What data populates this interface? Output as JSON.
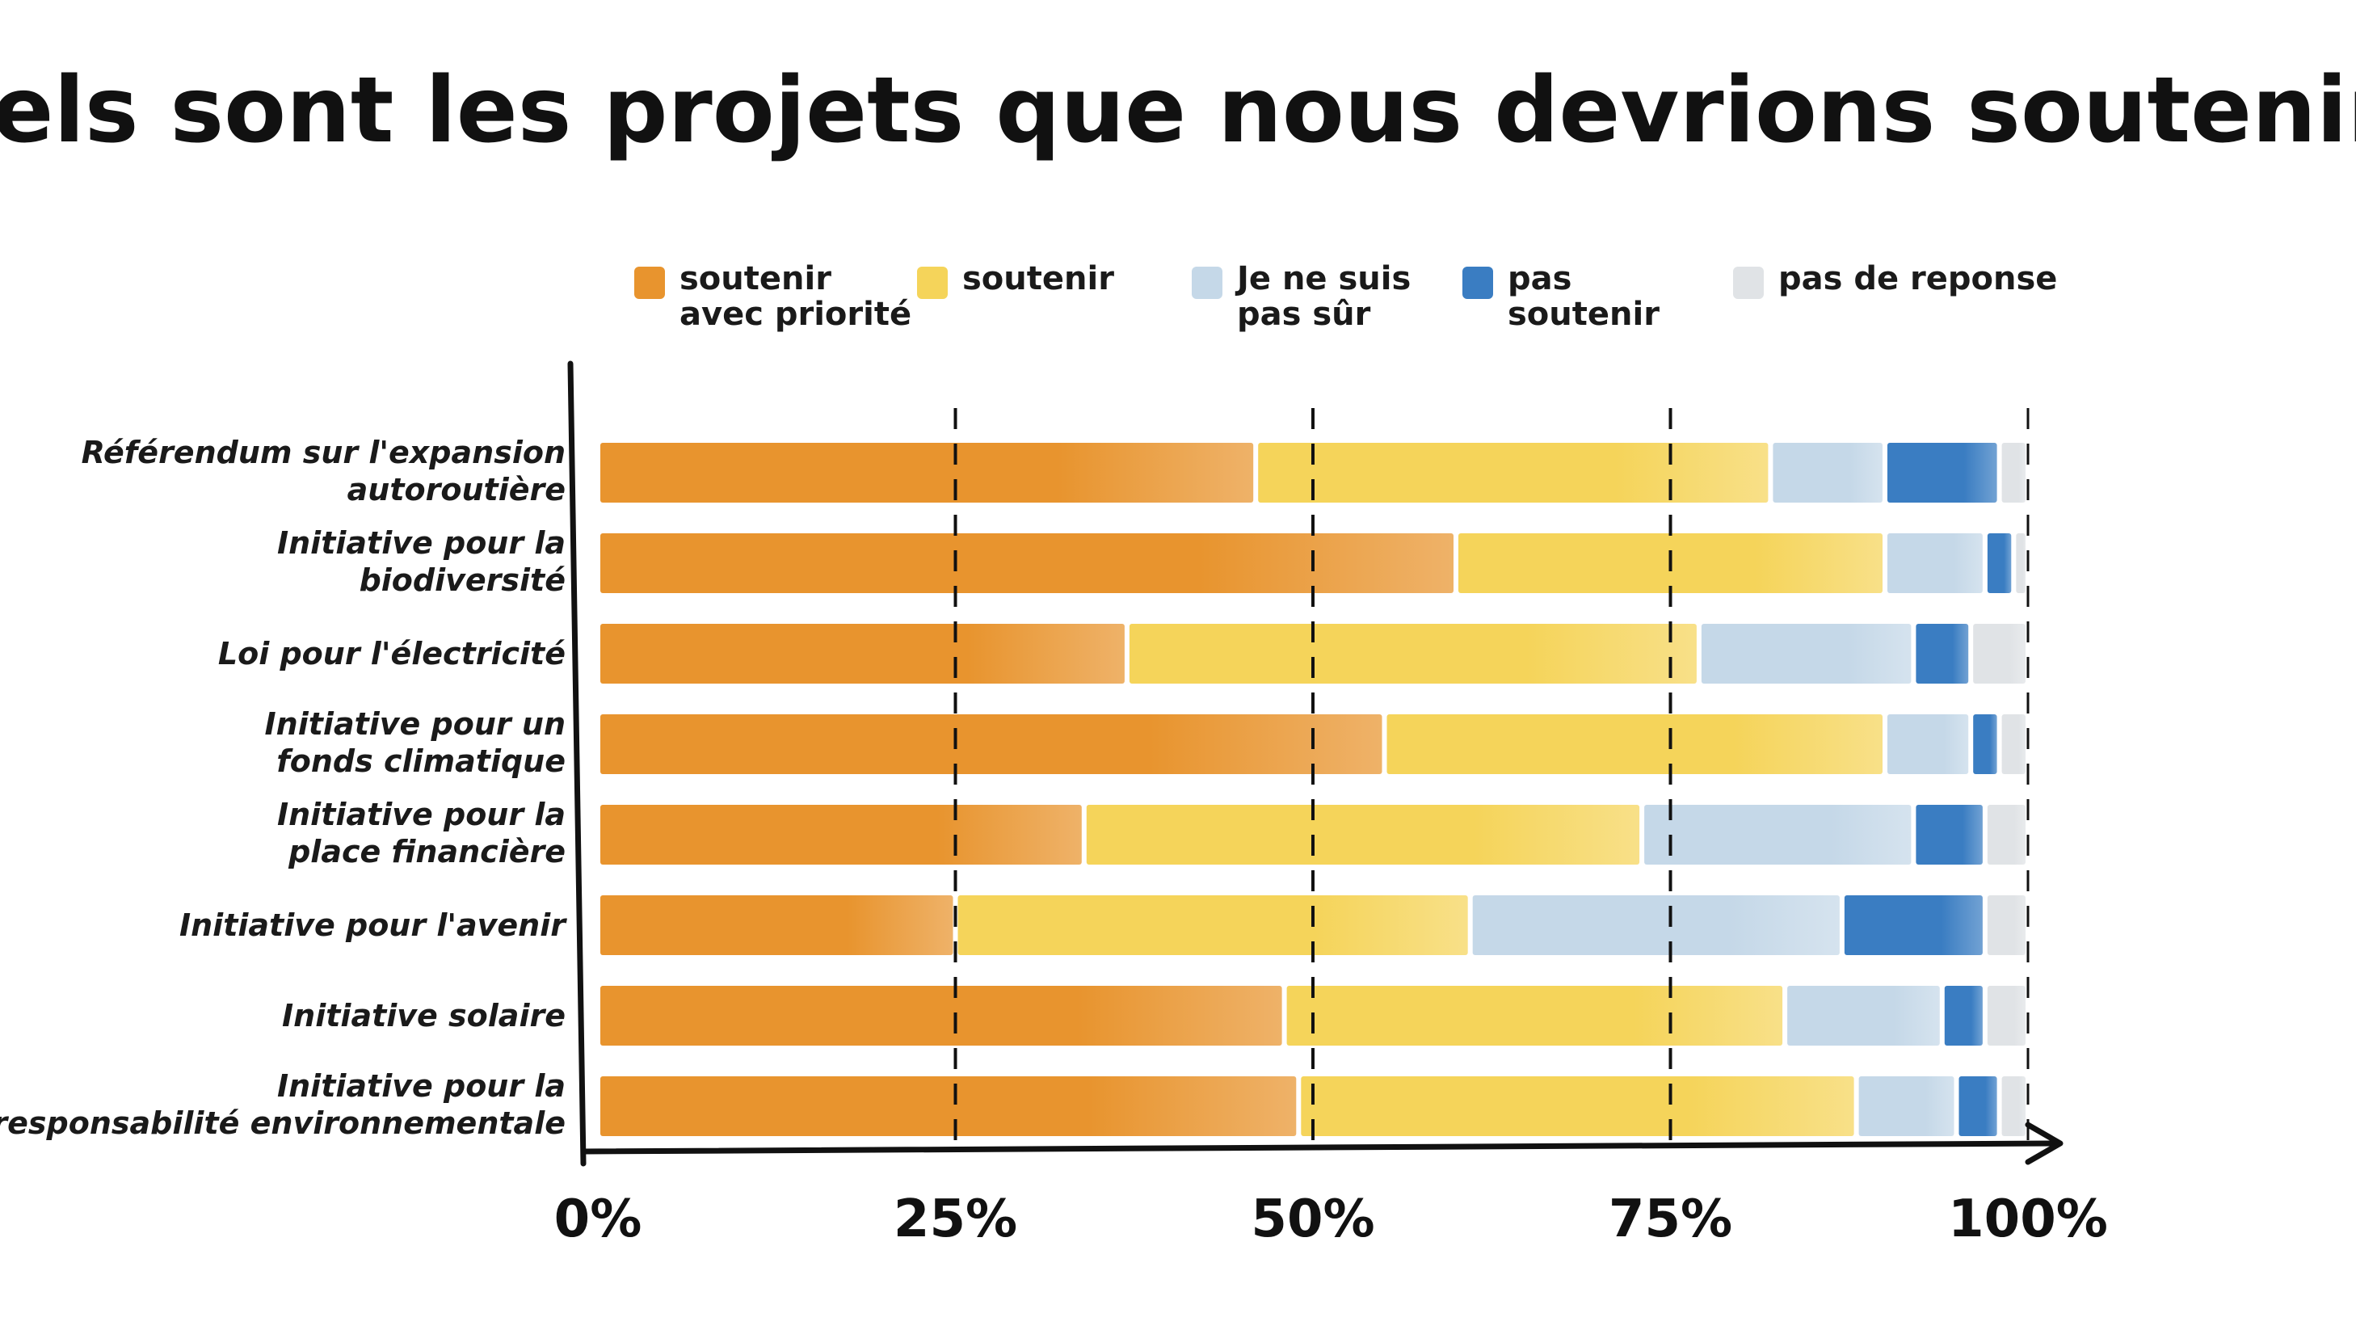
{
  "chart_data": {
    "type": "bar",
    "orientation": "horizontal",
    "stacked": true,
    "title": "Quels sont les projets que nous devrions soutenir ?",
    "xlabel": "",
    "ylabel": "",
    "xlim": [
      0,
      100
    ],
    "unit": "%",
    "x_ticks": [
      "0%",
      "25%",
      "50%",
      "75%",
      "100%"
    ],
    "grid": "dashed vertical lines at 25%, 50%, 75%",
    "legend_position": "top",
    "legend": [
      {
        "label": "soutenir avec priorité",
        "lines": [
          "soutenir",
          "avec priorité"
        ]
      },
      {
        "label": "soutenir",
        "lines": [
          "soutenir"
        ]
      },
      {
        "label": "Je ne suis pas sûr",
        "lines": [
          "Je ne suis",
          "pas sûr"
        ]
      },
      {
        "label": "pas soutenir",
        "lines": [
          "pas",
          "soutenir"
        ]
      },
      {
        "label": "pas de reponse",
        "lines": [
          "pas de reponse"
        ]
      }
    ],
    "categories": [
      {
        "label": "Référendum sur l'expansion autoroutière",
        "lines": [
          "Référendum sur l'expansion",
          "autoroutière"
        ]
      },
      {
        "label": "Initiative pour la biodiversité",
        "lines": [
          "Initiative pour la",
          "biodiversité"
        ]
      },
      {
        "label": "Loi pour l'électricité",
        "lines": [
          "Loi pour l'électricité"
        ]
      },
      {
        "label": "Initiative pour un fonds climatique",
        "lines": [
          "Initiative pour un",
          "fonds climatique"
        ]
      },
      {
        "label": "Initiative pour la place financière",
        "lines": [
          "Initiative pour la",
          "place financière"
        ]
      },
      {
        "label": "Initiative pour l'avenir",
        "lines": [
          "Initiative pour l'avenir"
        ]
      },
      {
        "label": "Initiative solaire",
        "lines": [
          "Initiative solaire"
        ]
      },
      {
        "label": "Initiative pour la responsabilité environnementale",
        "lines": [
          "Initiative pour la",
          "responsabilité environnementale"
        ]
      }
    ],
    "series": [
      {
        "name": "soutenir avec priorité",
        "color": "#E8942E",
        "values": [
          46,
          60,
          37,
          55,
          34,
          25,
          48,
          49
        ]
      },
      {
        "name": "soutenir",
        "color": "#F5D45A",
        "values": [
          36,
          30,
          40,
          35,
          39,
          36,
          35,
          39
        ]
      },
      {
        "name": "Je ne suis pas sûr",
        "color": "#C5D8E8",
        "values": [
          8,
          7,
          15,
          6,
          19,
          26,
          11,
          7
        ]
      },
      {
        "name": "pas soutenir",
        "color": "#3A7DC2",
        "values": [
          8,
          2,
          4,
          2,
          5,
          10,
          3,
          3
        ]
      },
      {
        "name": "pas de reponse",
        "color": "#E0E3E6",
        "values": [
          2,
          1,
          4,
          2,
          3,
          3,
          3,
          2
        ]
      }
    ],
    "colors": {
      "axis": "#111111",
      "grid": "#111111"
    }
  }
}
